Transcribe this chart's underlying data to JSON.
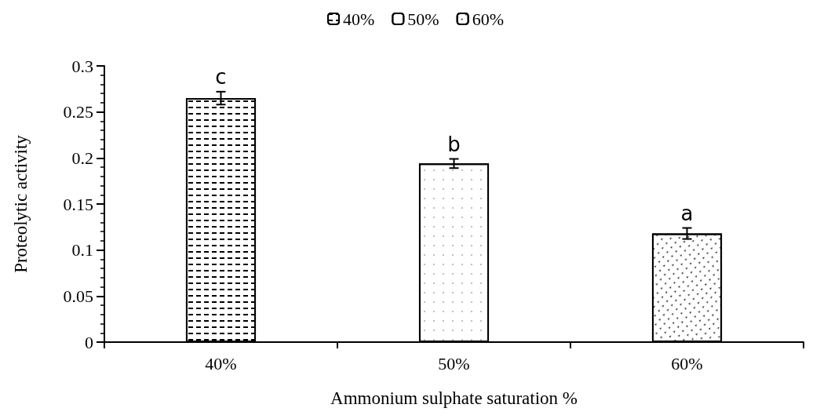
{
  "chart_data": {
    "type": "bar",
    "categories": [
      "40%",
      "50%",
      "60%"
    ],
    "series": [
      {
        "name": "40%",
        "color": "#000000",
        "values": [
          0.265,
          null,
          null
        ],
        "errors": [
          0.007,
          null,
          null
        ]
      },
      {
        "name": "50%",
        "color": "#000000",
        "values": [
          null,
          0.194,
          null
        ],
        "errors": [
          null,
          0.005,
          null
        ]
      },
      {
        "name": "60%",
        "color": "#000000",
        "values": [
          null,
          null,
          0.118
        ],
        "errors": [
          null,
          null,
          0.006
        ]
      }
    ],
    "xlabel": "Ammonium sulphate saturation %",
    "ylabel": "Proteolytic activity",
    "ylim": [
      0,
      0.3
    ],
    "yticks": [
      0,
      0.05,
      0.1,
      0.15,
      0.2,
      0.25,
      0.3
    ],
    "annotations": [
      "c",
      "b",
      "a"
    ],
    "grid": false,
    "legend": "top"
  }
}
